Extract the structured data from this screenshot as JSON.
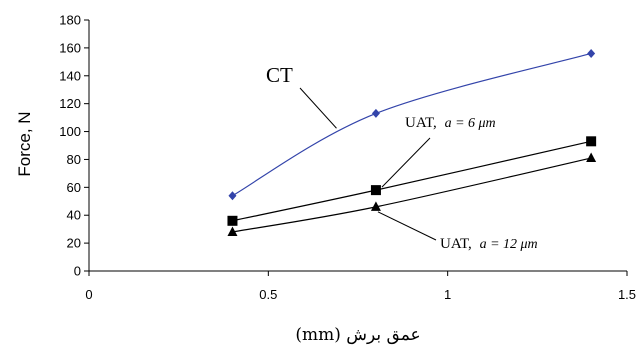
{
  "chart_data": {
    "type": "line",
    "xlabel": "عمق برش (mm)",
    "ylabel": "Force, N",
    "xlim": [
      0,
      1.5
    ],
    "ylim": [
      0,
      180
    ],
    "x_ticks": [
      "0",
      "0.5",
      "1",
      "1.5"
    ],
    "y_ticks": [
      "0",
      "20",
      "40",
      "60",
      "80",
      "100",
      "120",
      "140",
      "160",
      "180"
    ],
    "grid": false,
    "legend": "none",
    "series": [
      {
        "name": "CT",
        "color": "#3344aa",
        "marker": "diamond",
        "x": [
          0.4,
          0.8,
          1.4
        ],
        "y": [
          54,
          113,
          156
        ]
      },
      {
        "name": "UAT, a = 6 μm",
        "color": "#000000",
        "marker": "square",
        "x": [
          0.4,
          0.8,
          1.4
        ],
        "y": [
          36,
          58,
          93
        ]
      },
      {
        "name": "UAT, a = 12 μm",
        "color": "#000000",
        "marker": "triangle",
        "x": [
          0.4,
          0.8,
          1.4
        ],
        "y": [
          28,
          46,
          81
        ]
      }
    ],
    "annotations": [
      {
        "id": "ct",
        "prefix": "CT",
        "tail": ""
      },
      {
        "id": "uat6",
        "prefix": "UAT,",
        "tail": "a = 6 μm"
      },
      {
        "id": "uat12",
        "prefix": "UAT,",
        "tail": "a = 12 μm"
      }
    ]
  }
}
